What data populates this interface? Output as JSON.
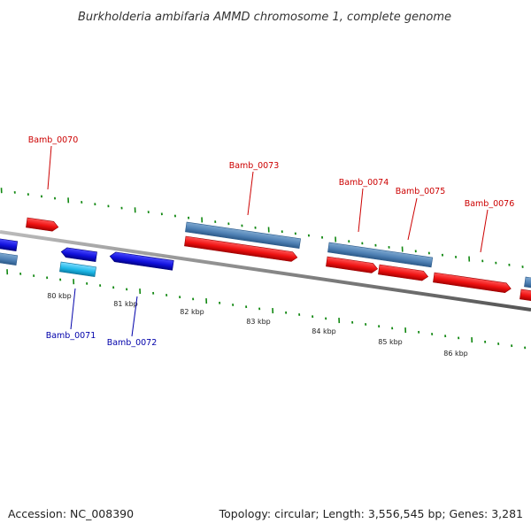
{
  "title": "Burkholderia ambifaria AMMD chromosome 1, complete genome",
  "footer": {
    "accession": "Accession: NC_008390",
    "summary": "Topology: circular; Length: 3,556,545 bp; Genes: 3,281"
  },
  "colors": {
    "forward_cds": "#ee1111",
    "forward_gene": "#4f81b5",
    "reverse_cds": "#1111dd",
    "reverse_gene": "#1eb9e8",
    "backbone": "#888888",
    "tick": "#118811",
    "label_forward": "#cc0000",
    "label_reverse": "#0000aa"
  },
  "scale_labels": [
    "80 kbp",
    "81 kbp",
    "82 kbp",
    "83 kbp",
    "84 kbp",
    "85 kbp",
    "86 kbp"
  ],
  "genes": [
    {
      "name": "Bamb_0070",
      "strand": "+"
    },
    {
      "name": "Bamb_0071",
      "strand": "-"
    },
    {
      "name": "Bamb_0072",
      "strand": "-"
    },
    {
      "name": "Bamb_0073",
      "strand": "+"
    },
    {
      "name": "Bamb_0074",
      "strand": "+"
    },
    {
      "name": "Bamb_0075",
      "strand": "+"
    },
    {
      "name": "Bamb_0076",
      "strand": "+"
    }
  ]
}
